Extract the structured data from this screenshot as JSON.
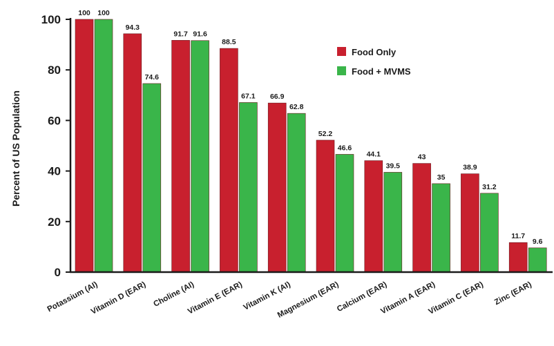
{
  "chart_data": {
    "type": "bar",
    "ylabel": "Percent of US Population",
    "ylim": [
      0,
      100
    ],
    "yticks": [
      0,
      20,
      40,
      60,
      80,
      100
    ],
    "grid": false,
    "legend_position": "top-right",
    "categories": [
      "Potassium (AI)",
      "Vitamin D (EAR)",
      "Choline (AI)",
      "Vitamin E (EAR)",
      "Vitamin K (AI)",
      "Magnesium (EAR)",
      "Calcium (EAR)",
      "Vitamin A (EAR)",
      "Vitamin C (EAR)",
      "Zinc (EAR)"
    ],
    "series": [
      {
        "name": "Food Only",
        "color": "#c8202e",
        "values": [
          100,
          94.3,
          91.7,
          88.5,
          66.9,
          52.2,
          44.1,
          43,
          38.9,
          11.7
        ],
        "labels": [
          "100",
          "94.3",
          "91.7",
          "88.5",
          "66.9",
          "52.2",
          "44.1",
          "43",
          "38.9",
          "11.7"
        ]
      },
      {
        "name": "Food + MVMS",
        "color": "#3ab54a",
        "values": [
          100,
          74.6,
          91.6,
          67.1,
          62.8,
          46.6,
          39.5,
          35,
          31.2,
          9.6
        ],
        "labels": [
          "100",
          "74.6",
          "91.6",
          "67.1",
          "62.8",
          "46.6",
          "39.5",
          "35",
          "31.2",
          "9.6"
        ]
      }
    ]
  }
}
